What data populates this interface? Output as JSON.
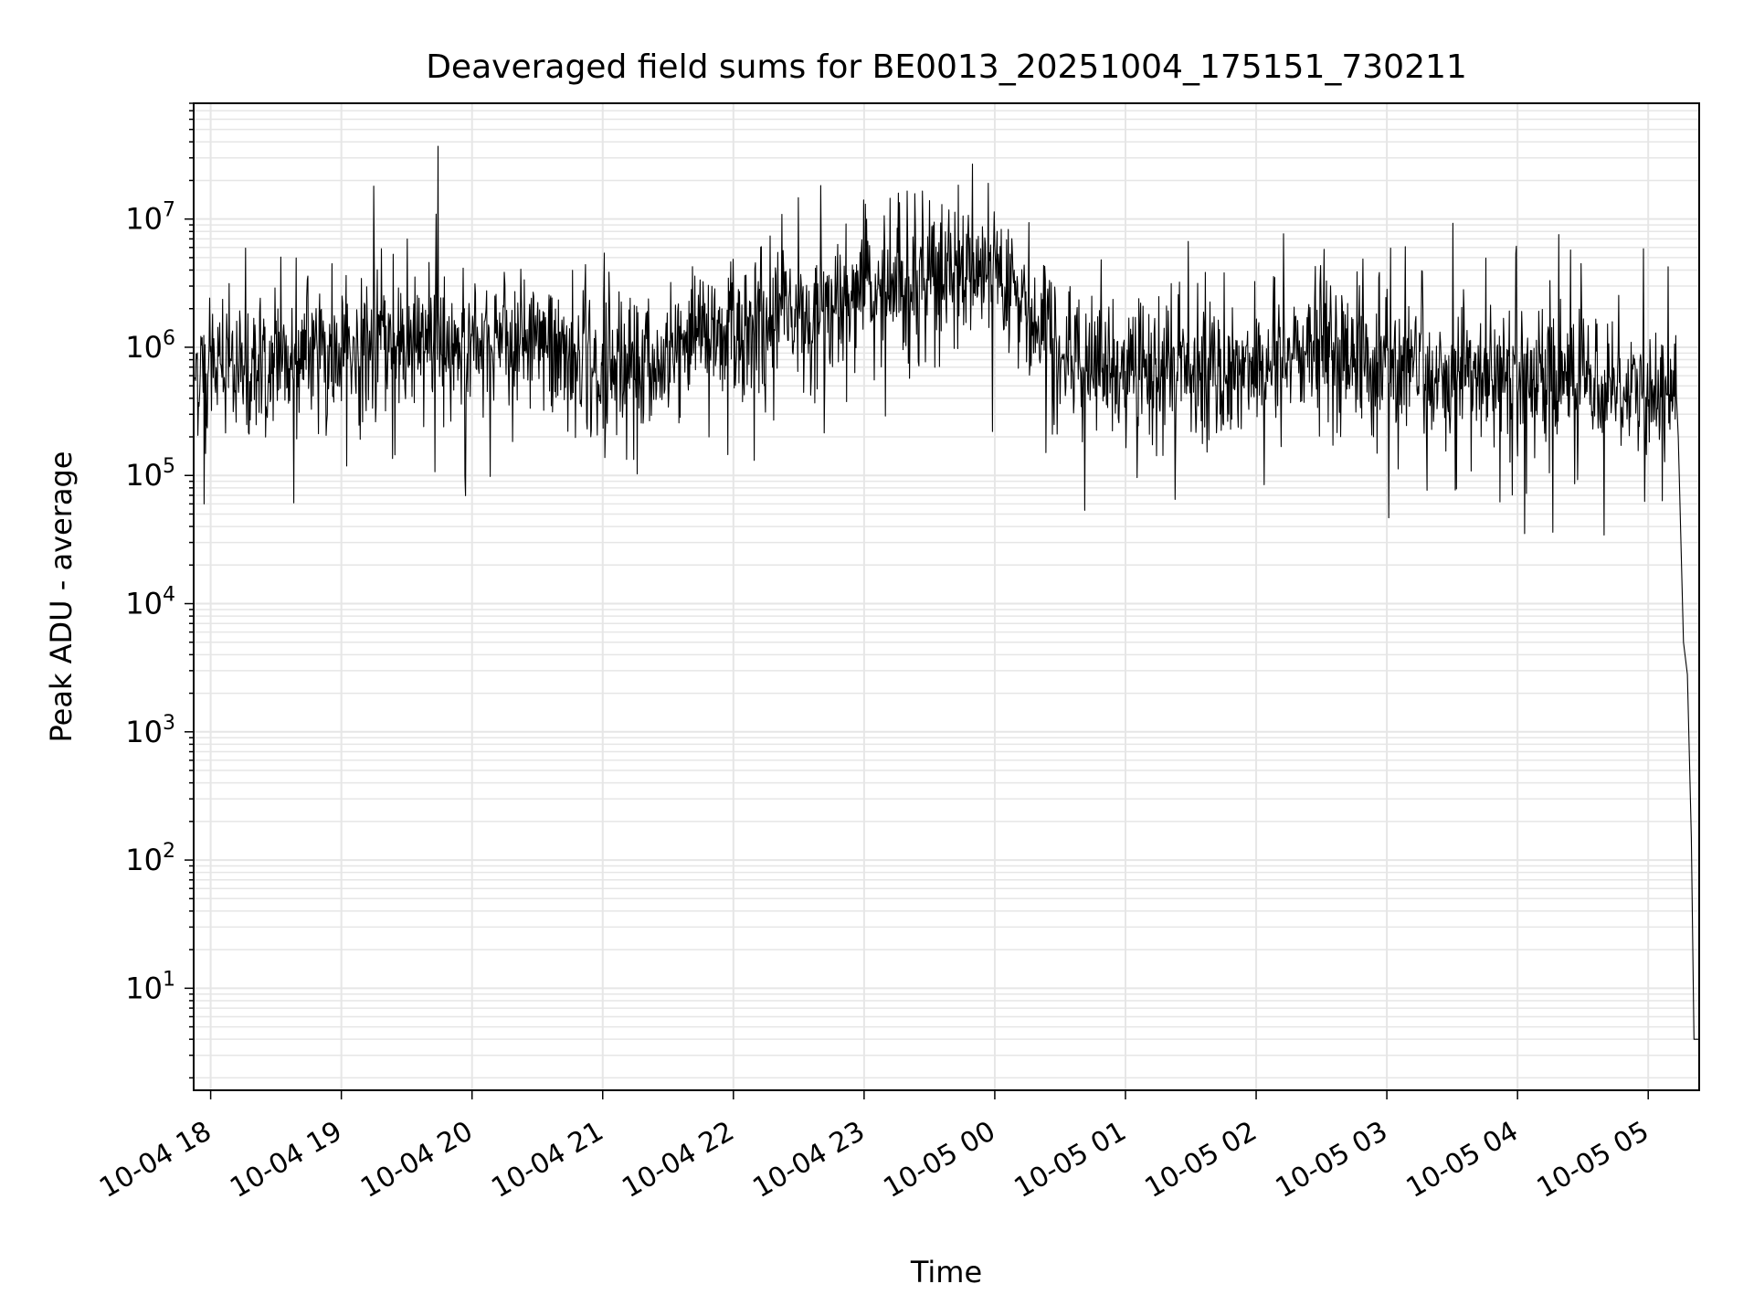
{
  "chart_data": {
    "type": "line",
    "title": "Deaveraged field sums for BE0013_20251004_175151_730211",
    "xlabel": "Time",
    "ylabel": "Peak ADU - average",
    "yscale": "log",
    "ylim": [
      1.6,
      80000000
    ],
    "xlim_hours": [
      -0.13,
      11.39
    ],
    "grid": true,
    "x_ticks": [
      {
        "label": "10-04 18",
        "h": 0
      },
      {
        "label": "10-04 19",
        "h": 1
      },
      {
        "label": "10-04 20",
        "h": 2
      },
      {
        "label": "10-04 21",
        "h": 3
      },
      {
        "label": "10-04 22",
        "h": 4
      },
      {
        "label": "10-04 23",
        "h": 5
      },
      {
        "label": "10-05 00",
        "h": 6
      },
      {
        "label": "10-05 01",
        "h": 7
      },
      {
        "label": "10-05 02",
        "h": 8
      },
      {
        "label": "10-05 03",
        "h": 9
      },
      {
        "label": "10-05 04",
        "h": 10
      },
      {
        "label": "10-05 05",
        "h": 11
      }
    ],
    "y_ticks": [
      {
        "base": "10",
        "exp": "1",
        "value": 10
      },
      {
        "base": "10",
        "exp": "2",
        "value": 100
      },
      {
        "base": "10",
        "exp": "3",
        "value": 1000
      },
      {
        "base": "10",
        "exp": "4",
        "value": 10000
      },
      {
        "base": "10",
        "exp": "5",
        "value": 100000
      },
      {
        "base": "10",
        "exp": "6",
        "value": 1000000
      },
      {
        "base": "10",
        "exp": "7",
        "value": 10000000
      }
    ],
    "series": [
      {
        "name": "field sums",
        "color": "#000000",
        "baseline_envelope": {
          "x": [
            -0.13,
            0.5,
            1.5,
            2.5,
            3.0,
            4.0,
            4.5,
            5.0,
            5.5,
            6.0,
            6.5,
            7.0,
            8.0,
            8.5,
            9.0,
            10.0,
            10.5,
            11.0,
            11.2
          ],
          "median": [
            700000,
            800000,
            1000000,
            1000000,
            600000,
            1300000,
            1500000,
            2500000,
            3500000,
            3500000,
            800000,
            700000,
            700000,
            1000000,
            600000,
            600000,
            600000,
            500000,
            500000
          ]
        },
        "notable_points": [
          {
            "x": -0.05,
            "y": 60000
          },
          {
            "x": 1.74,
            "y": 37000000
          },
          {
            "x": 5.95,
            "y": 19000000
          },
          {
            "x": 7.38,
            "y": 65000
          },
          {
            "x": 11.23,
            "y": 200000
          },
          {
            "x": 11.27,
            "y": 5000
          },
          {
            "x": 11.3,
            "y": 2800
          },
          {
            "x": 11.33,
            "y": 150
          },
          {
            "x": 11.35,
            "y": 4
          },
          {
            "x": 11.39,
            "y": 4
          }
        ]
      }
    ]
  }
}
